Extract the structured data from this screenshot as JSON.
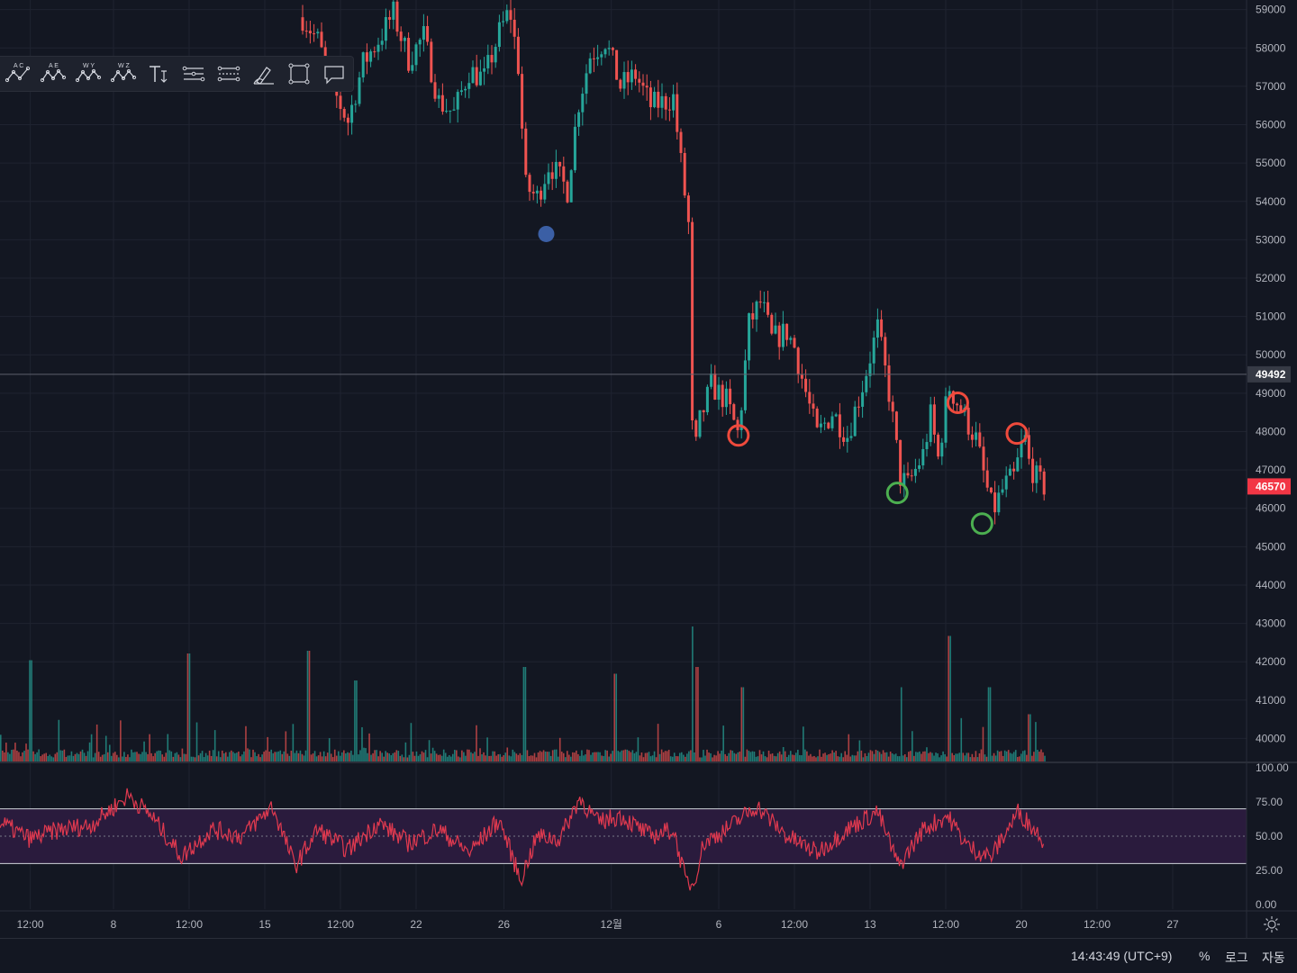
{
  "colors": {
    "background": "#131722",
    "grid": "#1f2330",
    "axis_text": "#b2b5be",
    "up": "#26a69a",
    "down": "#ef5350",
    "rsi_line": "#e0394f",
    "rsi_band": "#2a1b3d",
    "last_price_bg": "#f23645",
    "crosshair_price_bg": "#363a45",
    "marker_red": "#ef4a3c",
    "marker_green": "#4caf50",
    "marker_blue": "#3b5fa5"
  },
  "toolbar": {
    "tools": [
      {
        "name": "abcd-pattern-icon",
        "letters": "A C"
      },
      {
        "name": "abcde-pattern-icon",
        "letters": "A E"
      },
      {
        "name": "wxy-pattern-icon",
        "letters": "W Y"
      },
      {
        "name": "wxyz-pattern-icon",
        "letters": "W Z"
      },
      {
        "name": "text-tool-icon",
        "letters": ""
      },
      {
        "name": "parallel-channel-icon",
        "letters": ""
      },
      {
        "name": "regression-channel-icon",
        "letters": ""
      },
      {
        "name": "brush-icon",
        "letters": ""
      },
      {
        "name": "rectangle-icon",
        "letters": ""
      },
      {
        "name": "callout-icon",
        "letters": ""
      }
    ]
  },
  "chart_data": {
    "type": "candlestick",
    "price_axis": {
      "ticks": [
        59000,
        58000,
        57000,
        56000,
        55000,
        54000,
        53000,
        52000,
        51000,
        50000,
        49000,
        48000,
        47000,
        46000,
        45000,
        44000,
        43000,
        42000,
        41000,
        40000
      ],
      "range": [
        39400,
        59250
      ],
      "crosshair_price": "49492",
      "last_price": "46570"
    },
    "rsi_axis": {
      "ticks": [
        "100.00",
        "75.00",
        "50.00",
        "25.00",
        "0.00"
      ],
      "upper_band": 70,
      "lower_band": 30,
      "range": [
        0,
        100
      ]
    },
    "time_axis": {
      "labels": [
        "12:00",
        "8",
        "12:00",
        "15",
        "12:00",
        "22",
        "26",
        "12월",
        "6",
        "12:00",
        "13",
        "12:00",
        "20",
        "12:00",
        "27"
      ],
      "label_slot_positions": [
        2,
        7.5,
        12.5,
        17.5,
        22.5,
        27.5,
        33.3,
        40.4,
        47.5,
        52.5,
        57.5,
        62.5,
        67.5,
        72.5,
        77.5
      ]
    },
    "price_path": [
      {
        "t": 20,
        "p": 58800
      },
      {
        "t": 21,
        "p": 58200
      },
      {
        "t": 22,
        "p": 56900
      },
      {
        "t": 23,
        "p": 56100
      },
      {
        "t": 24,
        "p": 57600
      },
      {
        "t": 25,
        "p": 58200
      },
      {
        "t": 26,
        "p": 58900
      },
      {
        "t": 27,
        "p": 57700
      },
      {
        "t": 28,
        "p": 58300
      },
      {
        "t": 29,
        "p": 56600
      },
      {
        "t": 30,
        "p": 56300
      },
      {
        "t": 31,
        "p": 57400
      },
      {
        "t": 32,
        "p": 57200
      },
      {
        "t": 33,
        "p": 58400
      },
      {
        "t": 33.7,
        "p": 59000
      },
      {
        "t": 34.3,
        "p": 57400
      },
      {
        "t": 34.7,
        "p": 54400
      },
      {
        "t": 35.5,
        "p": 54100
      },
      {
        "t": 36.3,
        "p": 55000
      },
      {
        "t": 37.5,
        "p": 54300
      },
      {
        "t": 38.2,
        "p": 56500
      },
      {
        "t": 39,
        "p": 57800
      },
      {
        "t": 40,
        "p": 58200
      },
      {
        "t": 41,
        "p": 57000
      },
      {
        "t": 42,
        "p": 57300
      },
      {
        "t": 43,
        "p": 56500
      },
      {
        "t": 44,
        "p": 56600
      },
      {
        "t": 44.5,
        "p": 56700
      },
      {
        "t": 45,
        "p": 55000
      },
      {
        "t": 45.5,
        "p": 53400
      },
      {
        "t": 45.8,
        "p": 47000
      },
      {
        "t": 46.2,
        "p": 48200
      },
      {
        "t": 47,
        "p": 49200
      },
      {
        "t": 48,
        "p": 48800
      },
      {
        "t": 48.8,
        "p": 47900
      },
      {
        "t": 49.5,
        "p": 50800
      },
      {
        "t": 50.3,
        "p": 51400
      },
      {
        "t": 51,
        "p": 50400
      },
      {
        "t": 52,
        "p": 50600
      },
      {
        "t": 52.5,
        "p": 50200
      },
      {
        "t": 53,
        "p": 49400
      },
      {
        "t": 54,
        "p": 47900
      },
      {
        "t": 55,
        "p": 48500
      },
      {
        "t": 56,
        "p": 47900
      },
      {
        "t": 57,
        "p": 49200
      },
      {
        "t": 58,
        "p": 50700
      },
      {
        "t": 58.8,
        "p": 48900
      },
      {
        "t": 59.5,
        "p": 46800
      },
      {
        "t": 60,
        "p": 46600
      },
      {
        "t": 61,
        "p": 47400
      },
      {
        "t": 61.5,
        "p": 48400
      },
      {
        "t": 62,
        "p": 47300
      },
      {
        "t": 62.7,
        "p": 49200
      },
      {
        "t": 63.6,
        "p": 48500
      },
      {
        "t": 64.5,
        "p": 47800
      },
      {
        "t": 65,
        "p": 46900
      },
      {
        "t": 65.6,
        "p": 45900
      },
      {
        "t": 66.4,
        "p": 46600
      },
      {
        "t": 67,
        "p": 46800
      },
      {
        "t": 67.7,
        "p": 47900
      },
      {
        "t": 68,
        "p": 47200
      },
      {
        "t": 68.6,
        "p": 46700
      },
      {
        "t": 69,
        "p": 46570
      }
    ],
    "volume_spikes": [
      {
        "t": 2,
        "v": 0.75
      },
      {
        "t": 12.4,
        "v": 0.8
      },
      {
        "t": 20.3,
        "v": 0.82
      },
      {
        "t": 23.5,
        "v": 0.6
      },
      {
        "t": 34.6,
        "v": 0.7
      },
      {
        "t": 40.6,
        "v": 0.65
      },
      {
        "t": 45.7,
        "v": 1.0
      },
      {
        "t": 46,
        "v": 0.7
      },
      {
        "t": 49,
        "v": 0.55
      },
      {
        "t": 59.5,
        "v": 0.55
      },
      {
        "t": 62.7,
        "v": 0.93
      },
      {
        "t": 65.3,
        "v": 0.55
      },
      {
        "t": 68,
        "v": 0.35
      }
    ],
    "rsi_path": [
      {
        "t": 0,
        "v": 60
      },
      {
        "t": 2,
        "v": 48
      },
      {
        "t": 4,
        "v": 55
      },
      {
        "t": 6,
        "v": 58
      },
      {
        "t": 8.5,
        "v": 80
      },
      {
        "t": 10,
        "v": 65
      },
      {
        "t": 12,
        "v": 35
      },
      {
        "t": 14,
        "v": 55
      },
      {
        "t": 16,
        "v": 50
      },
      {
        "t": 18,
        "v": 72
      },
      {
        "t": 19.5,
        "v": 28
      },
      {
        "t": 21,
        "v": 55
      },
      {
        "t": 23,
        "v": 40
      },
      {
        "t": 25,
        "v": 60
      },
      {
        "t": 27,
        "v": 45
      },
      {
        "t": 29,
        "v": 55
      },
      {
        "t": 31,
        "v": 38
      },
      {
        "t": 33,
        "v": 62
      },
      {
        "t": 34.4,
        "v": 18
      },
      {
        "t": 35.5,
        "v": 50
      },
      {
        "t": 37,
        "v": 48
      },
      {
        "t": 38.3,
        "v": 78
      },
      {
        "t": 39.5,
        "v": 60
      },
      {
        "t": 41,
        "v": 65
      },
      {
        "t": 43,
        "v": 50
      },
      {
        "t": 44.5,
        "v": 55
      },
      {
        "t": 45.3,
        "v": 18
      },
      {
        "t": 45.8,
        "v": 14
      },
      {
        "t": 46.5,
        "v": 45
      },
      {
        "t": 48,
        "v": 55
      },
      {
        "t": 50,
        "v": 72
      },
      {
        "t": 52,
        "v": 50
      },
      {
        "t": 54,
        "v": 38
      },
      {
        "t": 56,
        "v": 55
      },
      {
        "t": 58,
        "v": 68
      },
      {
        "t": 59.4,
        "v": 28
      },
      {
        "t": 61,
        "v": 55
      },
      {
        "t": 62.6,
        "v": 65
      },
      {
        "t": 64,
        "v": 42
      },
      {
        "t": 65.5,
        "v": 35
      },
      {
        "t": 67.3,
        "v": 68
      },
      {
        "t": 69,
        "v": 47
      }
    ],
    "markers": [
      {
        "type": "circle",
        "color": "red",
        "t": 48.8,
        "p": 47900
      },
      {
        "type": "circle",
        "color": "red",
        "t": 63.3,
        "p": 48750
      },
      {
        "type": "circle",
        "color": "red",
        "t": 67.2,
        "p": 47950
      },
      {
        "type": "circle",
        "color": "green",
        "t": 59.3,
        "p": 46400
      },
      {
        "type": "circle",
        "color": "green",
        "t": 64.9,
        "p": 45600
      },
      {
        "type": "dot",
        "color": "blue",
        "t": 36.1,
        "p": 53150
      }
    ],
    "time_slot_count": 80
  },
  "status": {
    "clock": "14:43:49 (UTC+9)",
    "percent_button": "%",
    "log_button": "로그",
    "auto_button": "자동"
  }
}
